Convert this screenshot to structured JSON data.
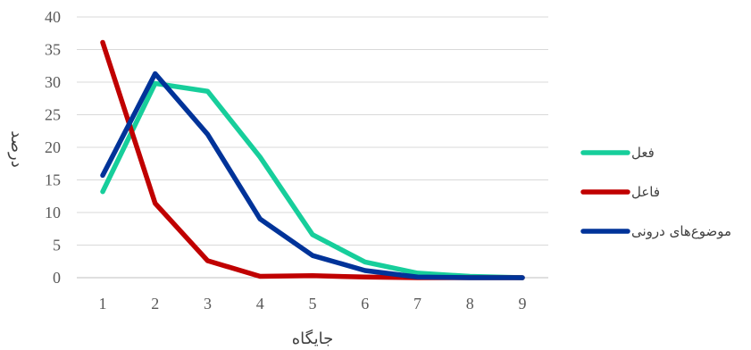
{
  "chart_data": {
    "type": "line",
    "xlabel": "جایگاه",
    "ylabel": "درصد",
    "x": [
      1,
      2,
      3,
      4,
      5,
      6,
      7,
      8,
      9
    ],
    "ylim": [
      0,
      40
    ],
    "yticks": [
      0,
      5,
      10,
      15,
      20,
      25,
      30,
      35,
      40
    ],
    "grid": "horizontal",
    "legend_position": "right",
    "series": [
      {
        "name": "فعل",
        "color": "#17CE9B",
        "values": [
          13.2,
          29.8,
          28.6,
          18.5,
          6.6,
          2.4,
          0.7,
          0.2,
          0.0
        ]
      },
      {
        "name": "فاعل",
        "color": "#C00000",
        "values": [
          36.1,
          11.4,
          2.6,
          0.2,
          0.3,
          0.1,
          0.0,
          0.0,
          0.0
        ]
      },
      {
        "name": "موضوع‌های درونی",
        "color": "#003399",
        "values": [
          15.7,
          31.3,
          22.0,
          9.0,
          3.4,
          1.1,
          0.1,
          0.0,
          0.0
        ]
      }
    ]
  }
}
